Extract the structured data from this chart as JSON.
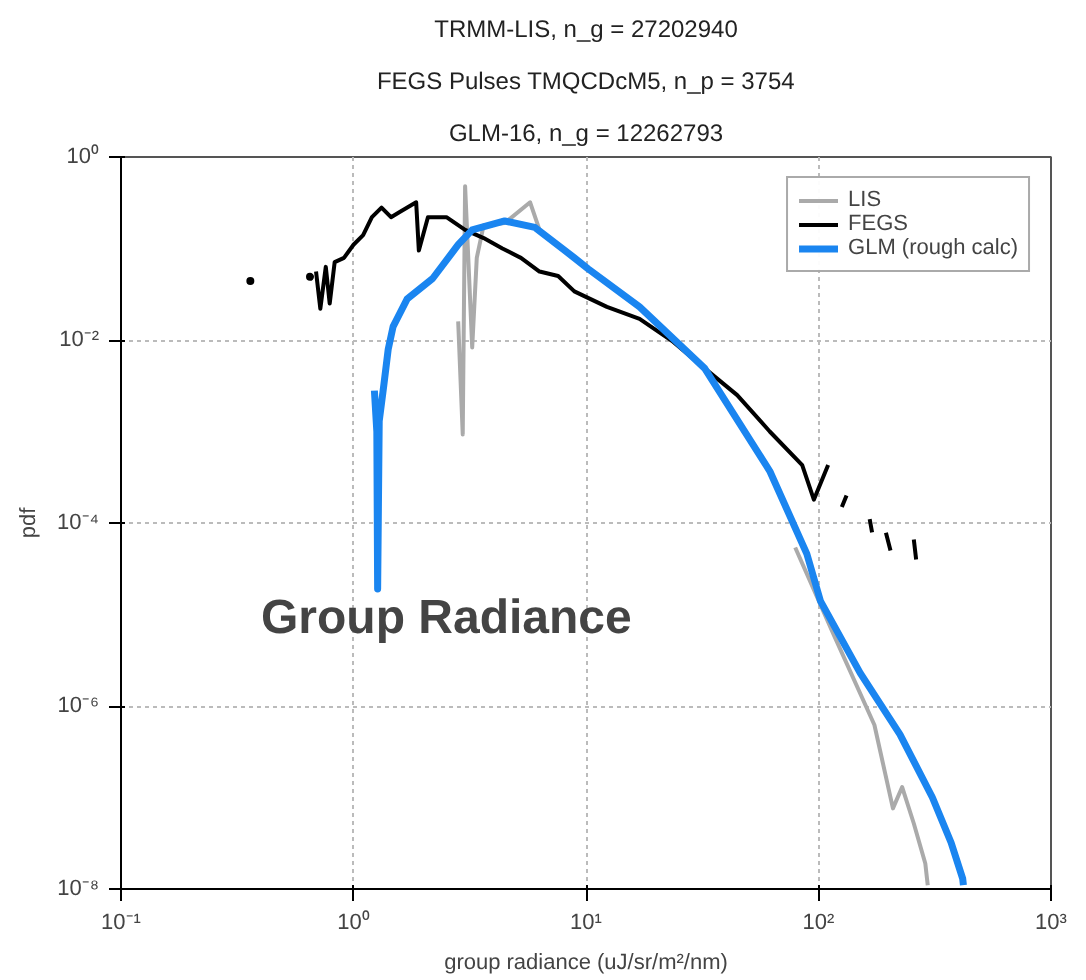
{
  "chart_data": {
    "type": "line",
    "title": [
      "TRMM-LIS, n_g = 27202940",
      "FEGS Pulses TMQCDcM5, n_p = 3754",
      "GLM-16, n_g = 12262793"
    ],
    "xlabel": "group radiance (uJ/sr/m²/nm)",
    "ylabel": "pdf",
    "log": "xy",
    "grid": true,
    "legend": "top right",
    "xlim": [
      0.1,
      1000
    ],
    "ylim": [
      1e-08,
      1
    ],
    "xticks": [
      {
        "value": 0.1,
        "label": "10⁻¹"
      },
      {
        "value": 1,
        "label": "10⁰"
      },
      {
        "value": 10,
        "label": "10¹"
      },
      {
        "value": 100,
        "label": "10²"
      },
      {
        "value": 1000,
        "label": "10³"
      }
    ],
    "yticks": [
      {
        "value": 1e-08,
        "label": "10⁻⁸"
      },
      {
        "value": 1e-06,
        "label": "10⁻⁶"
      },
      {
        "value": 0.0001,
        "label": "10⁻⁴"
      },
      {
        "value": 0.01,
        "label": "10⁻²"
      },
      {
        "value": 1,
        "label": "10⁰"
      }
    ],
    "annotations": [
      "Group Radiance"
    ],
    "series": [
      {
        "name": "LIS",
        "color": "#aaaaaa",
        "x": [
          2.82,
          2.95,
          3.02,
          3.24,
          3.39,
          3.63,
          4.47,
          5.75,
          6.31,
          8.91,
          17.0,
          32.4,
          61.7,
          79.4,
          117,
          174,
          209,
          229,
          257,
          288,
          295
        ],
        "values": [
          0.016,
          0.00093,
          0.48,
          0.0083,
          0.079,
          0.18,
          0.19,
          0.32,
          0.16,
          null,
          null,
          null,
          null,
          5.4e-05,
          5.8e-06,
          6.2e-07,
          7.6e-08,
          1.3e-07,
          5.2e-08,
          1.9e-08,
          1.1e-08
        ]
      },
      {
        "name": "FEGS",
        "color": "#000000",
        "x": [
          0.69,
          0.72,
          0.76,
          0.79,
          0.83,
          0.91,
          1.0,
          1.1,
          1.2,
          1.32,
          1.45,
          1.58,
          1.86,
          1.91,
          2.09,
          2.51,
          3.02,
          3.63,
          4.37,
          5.25,
          6.31,
          7.59,
          8.91,
          12.3,
          17.0,
          23.4,
          32.4,
          44.7,
          61.7,
          85.1,
          95.5,
          110,
          115,
          126,
          132,
          150,
          166,
          170,
          185,
          195,
          204,
          230,
          257,
          263
        ],
        "values": [
          0.056,
          0.022,
          0.063,
          0.025,
          0.071,
          0.079,
          0.11,
          0.14,
          0.22,
          0.28,
          0.22,
          0.25,
          0.32,
          0.095,
          0.22,
          0.22,
          0.16,
          0.13,
          0.1,
          0.079,
          0.056,
          0.05,
          0.034,
          0.023,
          0.017,
          0.0098,
          0.0049,
          0.0025,
          0.001,
          0.00043,
          0.00018,
          0.00043,
          null,
          0.00015,
          0.0002,
          null,
          0.00011,
          7.9e-05,
          null,
          7.8e-05,
          5e-05,
          null,
          6.6e-05,
          4e-05
        ]
      },
      {
        "type": "scatter",
        "color": "#000000",
        "marker": "circle",
        "x": [
          0.36,
          0.65
        ],
        "values": [
          0.044,
          0.049
        ]
      },
      {
        "name": "GLM (rough calc)",
        "color": "#1a85f0",
        "x": [
          1.23,
          1.26,
          1.27,
          1.29,
          1.35,
          1.41,
          1.48,
          1.7,
          2.19,
          2.82,
          3.24,
          4.47,
          6.03,
          8.91,
          10.2,
          17.0,
          32.4,
          61.7,
          89.1,
          102,
          151,
          224,
          309,
          372,
          417,
          420
        ],
        "values": [
          0.0028,
          0.001,
          1.9e-05,
          0.0013,
          0.0032,
          0.0079,
          0.014,
          0.028,
          0.047,
          0.11,
          0.16,
          0.2,
          0.17,
          0.079,
          0.06,
          0.023,
          0.0049,
          0.00037,
          4.6e-05,
          1.4e-05,
          2.3e-06,
          4.9e-07,
          1e-07,
          3.2e-08,
          1.3e-08,
          1.1e-08
        ]
      }
    ]
  }
}
